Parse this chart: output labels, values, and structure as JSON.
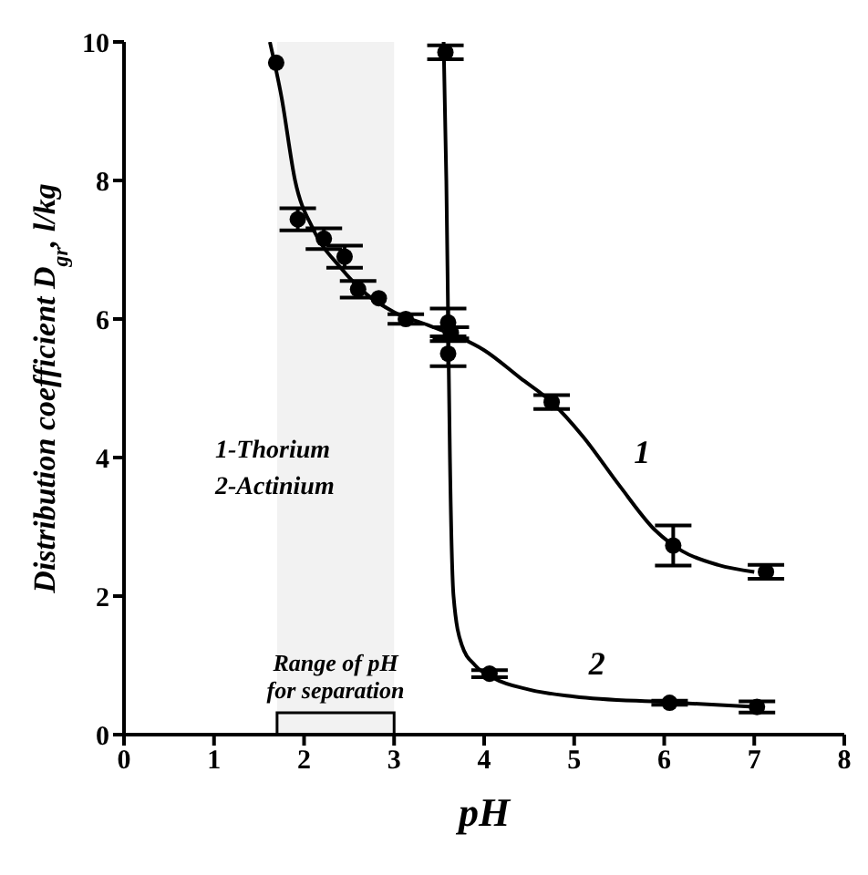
{
  "chart_data": {
    "type": "scatter",
    "xlabel": "pH",
    "ylabel": "Distribution coefficient D$_{gr}$, l/kg",
    "xlim": [
      0,
      8
    ],
    "xticks": [
      0,
      1,
      2,
      3,
      4,
      5,
      6,
      7,
      8
    ],
    "ylim": [
      0,
      10
    ],
    "yticks": [
      0,
      2,
      4,
      6,
      8,
      10
    ],
    "grid": false,
    "legend": false,
    "marker": "circle",
    "series": [
      {
        "type": "line",
        "name": "1",
        "color": "#000000",
        "marker": "none",
        "x": [
          1.62,
          1.75,
          1.9,
          2.1,
          2.4,
          2.7,
          3.0,
          3.4,
          3.7,
          4.0,
          4.4,
          4.75,
          5.1,
          5.5,
          5.9,
          6.2,
          6.6,
          7.0
        ],
        "values": [
          10.0,
          9.2,
          8.0,
          7.3,
          6.75,
          6.35,
          6.1,
          5.9,
          5.75,
          5.55,
          5.15,
          4.8,
          4.3,
          3.6,
          2.95,
          2.65,
          2.45,
          2.35
        ]
      },
      {
        "type": "line",
        "name": "2",
        "color": "#000000",
        "marker": "none",
        "x": [
          3.55,
          3.58,
          3.6,
          3.62,
          3.66,
          3.75,
          3.9,
          4.1,
          4.5,
          5.0,
          6.0,
          7.0
        ],
        "values": [
          10.0,
          8.0,
          6.0,
          4.0,
          2.0,
          1.3,
          1.0,
          0.82,
          0.65,
          0.55,
          0.47,
          0.4
        ]
      },
      {
        "color": "#000000",
        "x": [
          1.69,
          1.93,
          2.22,
          2.45,
          2.6,
          2.83,
          3.13,
          3.63,
          4.75,
          6.1,
          7.13
        ],
        "values": [
          9.7,
          7.44,
          7.16,
          6.9,
          6.43,
          6.3,
          6.0,
          5.8,
          4.8,
          2.73,
          2.35
        ],
        "errors": [
          null,
          0.16,
          0.15,
          0.16,
          0.12,
          null,
          0.07,
          0.08,
          0.1,
          0.29,
          0.1
        ]
      },
      {
        "color": "#000000",
        "x": [
          3.57,
          3.6,
          3.6,
          4.06,
          6.06,
          7.03
        ],
        "values": [
          9.85,
          5.95,
          5.5,
          0.88,
          0.46,
          0.4
        ],
        "errors": [
          0.1,
          0.2,
          0.18,
          0.05,
          0.03,
          0.08
        ]
      }
    ],
    "bands": [
      {
        "axis": "x",
        "from": 1.7,
        "to": 3.0,
        "label": "Range of pH\nfor separation"
      }
    ],
    "annotations": [
      "1-Thorium",
      "2-Actinium"
    ]
  }
}
